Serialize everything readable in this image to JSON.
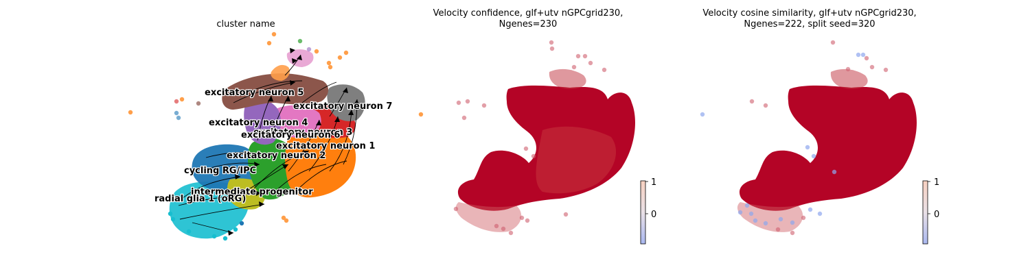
{
  "figure": {
    "panels": [
      {
        "title_lines": [
          "cluster name"
        ],
        "type": "scatter",
        "clusters": [
          {
            "name": "radial glia 1 (oRG)",
            "color": "#17becf"
          },
          {
            "name": "cycling RG/IPC",
            "color": "#1f77b4"
          },
          {
            "name": "intermediate progenitor",
            "color": "#bcbd22"
          },
          {
            "name": "excitatory neuron 1",
            "color": "#ff7f0e"
          },
          {
            "name": "excitatory neuron 2",
            "color": "#2ca02c"
          },
          {
            "name": "excitatory neuron 3",
            "color": "#d62728"
          },
          {
            "name": "excitatory neuron 4",
            "color": "#9467bd"
          },
          {
            "name": "excitatory neuron 5",
            "color": "#8c564b"
          },
          {
            "name": "excitatory neuron 6",
            "color": "#e377c2"
          },
          {
            "name": "excitatory neuron 7",
            "color": "#7f7f7f"
          }
        ],
        "overlay": "velocity-streamlines"
      },
      {
        "title_lines": [
          "Velocity confidence, glf+utv nGPCgrid230,",
          "Ngenes=230"
        ],
        "type": "scatter",
        "colormap": "coolwarm",
        "colorbar_ticks": [
          "1",
          "0"
        ],
        "dominant_color": "#b40426"
      },
      {
        "title_lines": [
          "Velocity cosine similarity, glf+utv nGPCgrid230,",
          "Ngenes=222, split seed=320"
        ],
        "type": "scatter",
        "colormap": "coolwarm",
        "colorbar_ticks": [
          "1",
          "0"
        ],
        "dominant_color": "#b40426"
      }
    ]
  }
}
